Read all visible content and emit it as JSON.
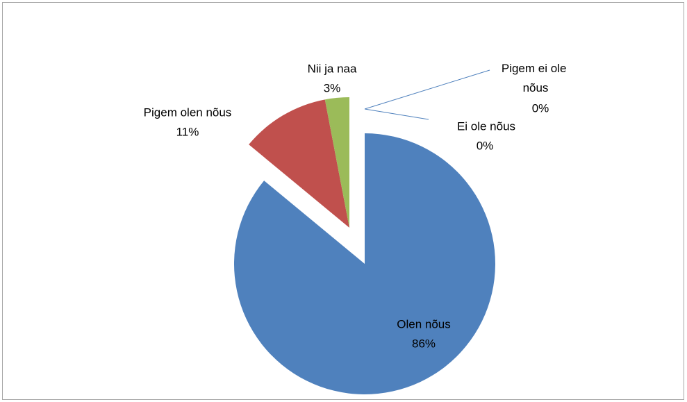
{
  "chart_data": {
    "type": "pie",
    "categories": [
      "Olen nõus",
      "Pigem olen nõus",
      "Nii ja naa",
      "Pigem ei ole nõus",
      "Ei ole nõus"
    ],
    "values": [
      86,
      11,
      3,
      0,
      0
    ],
    "value_labels": [
      "86%",
      "11%",
      "3%",
      "0%",
      "0%"
    ],
    "colors": [
      "#4f81bd",
      "#c0504d",
      "#9bbb59",
      "#8064a2",
      "#4bacc6"
    ]
  }
}
